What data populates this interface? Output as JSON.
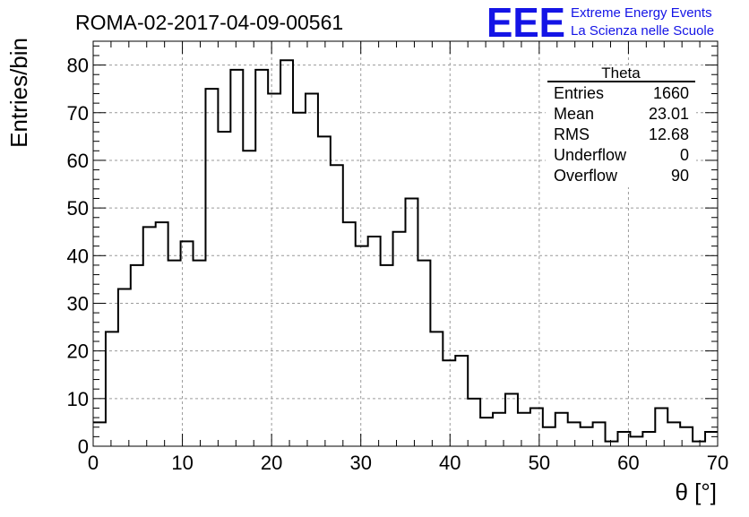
{
  "title": "ROMA-02-2017-04-09-00561",
  "logo": {
    "mark": "EEE",
    "line1": "Extreme Energy Events",
    "line2": "La Scienza nelle Scuole",
    "color": "#1414e6"
  },
  "stats": {
    "name": "Theta",
    "rows": [
      {
        "label": "Entries",
        "value": "1660"
      },
      {
        "label": "Mean",
        "value": "23.01"
      },
      {
        "label": "RMS",
        "value": "12.68"
      },
      {
        "label": "Underflow",
        "value": "0"
      },
      {
        "label": "Overflow",
        "value": "90"
      }
    ]
  },
  "chart_data": {
    "type": "histogram",
    "title": "ROMA-02-2017-04-09-00561",
    "xlabel": "θ [°]",
    "ylabel": "Entries/bin",
    "xlim": [
      0,
      70
    ],
    "ylim": [
      0,
      85
    ],
    "bin_width": 1.4,
    "x_ticks": [
      0,
      10,
      20,
      30,
      40,
      50,
      60,
      70
    ],
    "y_ticks": [
      0,
      10,
      20,
      30,
      40,
      50,
      60,
      70,
      80
    ],
    "grid": true,
    "values": [
      5,
      24,
      33,
      38,
      46,
      47,
      39,
      43,
      39,
      75,
      66,
      79,
      62,
      79,
      74,
      81,
      70,
      74,
      65,
      59,
      47,
      42,
      44,
      38,
      45,
      52,
      39,
      24,
      18,
      19,
      10,
      6,
      7,
      11,
      7,
      8,
      4,
      7,
      5,
      4,
      5,
      1,
      3,
      2,
      3,
      8,
      5,
      4,
      1,
      3
    ]
  }
}
